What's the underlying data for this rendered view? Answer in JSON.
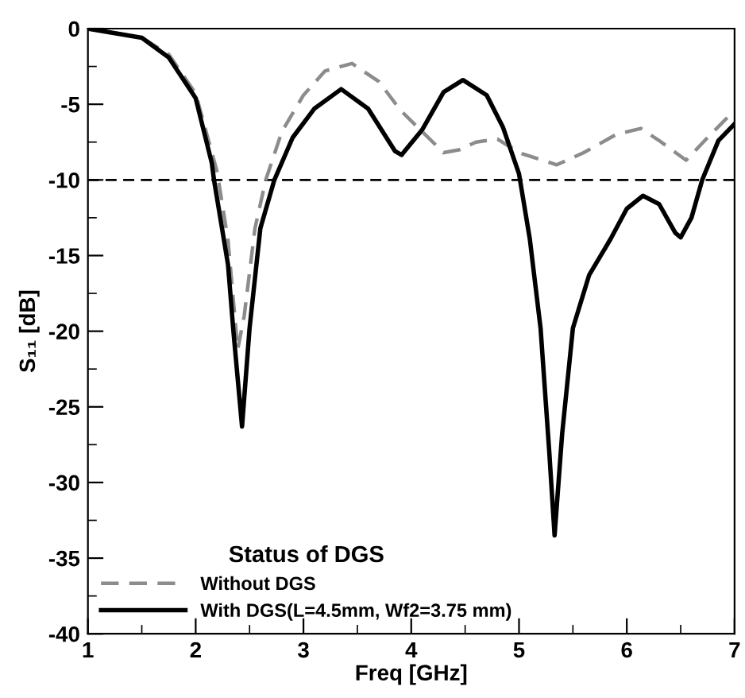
{
  "chart_data": {
    "type": "line",
    "xlabel": "Freq [GHz]",
    "ylabel": "S₁₁ [dB]",
    "legend_title": "Status of DGS",
    "xlim": [
      1,
      7
    ],
    "ylim": [
      -40,
      0
    ],
    "xticks": [
      1,
      2,
      3,
      4,
      5,
      6,
      7
    ],
    "yticks": [
      -40,
      -35,
      -30,
      -25,
      -20,
      -15,
      -10,
      -5,
      0
    ],
    "grid": false,
    "legend": "bottom left",
    "ref_lines": [
      {
        "axis": "y",
        "value": -10,
        "color": "#000000",
        "line_style": "dashed"
      }
    ],
    "series": [
      {
        "name": "Without DGS",
        "color": "#8c8c8c",
        "line_style": "dashed",
        "x": [
          1,
          1.5,
          1.75,
          2,
          2.2,
          2.3,
          2.39,
          2.45,
          2.55,
          2.65,
          2.8,
          3.0,
          3.2,
          3.45,
          3.7,
          3.9,
          4.1,
          4.3,
          4.45,
          4.6,
          4.8,
          5.0,
          5.35,
          5.6,
          5.9,
          6.13,
          6.3,
          6.55,
          6.75,
          7
        ],
        "values": [
          0,
          -0.6,
          -1.7,
          -4.3,
          -9.5,
          -14,
          -21.2,
          -19,
          -13.2,
          -10,
          -6.8,
          -4.4,
          -2.8,
          -2.3,
          -3.5,
          -5.4,
          -6.8,
          -8.2,
          -8.0,
          -7.5,
          -7.3,
          -8.2,
          -9.0,
          -8.2,
          -7.0,
          -6.6,
          -7.4,
          -8.7,
          -7.2,
          -5.4
        ]
      },
      {
        "name": "With DGS(L=4.5mm, Wf2=3.75 mm)",
        "color": "#000000",
        "line_style": "solid",
        "x": [
          1,
          1.5,
          1.75,
          2,
          2.15,
          2.17,
          2.3,
          2.35,
          2.43,
          2.5,
          2.6,
          2.73,
          2.9,
          3.1,
          3.35,
          3.6,
          3.85,
          3.91,
          4.1,
          4.3,
          4.48,
          4.7,
          4.85,
          5.0,
          5.1,
          5.2,
          5.28,
          5.33,
          5.4,
          5.5,
          5.65,
          5.85,
          6.0,
          6.15,
          6.3,
          6.45,
          6.5,
          6.6,
          6.7,
          6.85,
          7
        ],
        "values": [
          0,
          -0.6,
          -1.9,
          -4.6,
          -8.9,
          -10,
          -15.6,
          -20,
          -26.3,
          -19.8,
          -13.2,
          -10,
          -7.2,
          -5.3,
          -4.0,
          -5.3,
          -8.1,
          -8.35,
          -6.7,
          -4.2,
          -3.4,
          -4.4,
          -6.5,
          -9.6,
          -13.9,
          -19.8,
          -27.9,
          -33.5,
          -26.8,
          -19.8,
          -16.3,
          -13.9,
          -11.9,
          -11.05,
          -11.6,
          -13.5,
          -13.8,
          -12.5,
          -10,
          -7.4,
          -6.3
        ]
      }
    ]
  }
}
